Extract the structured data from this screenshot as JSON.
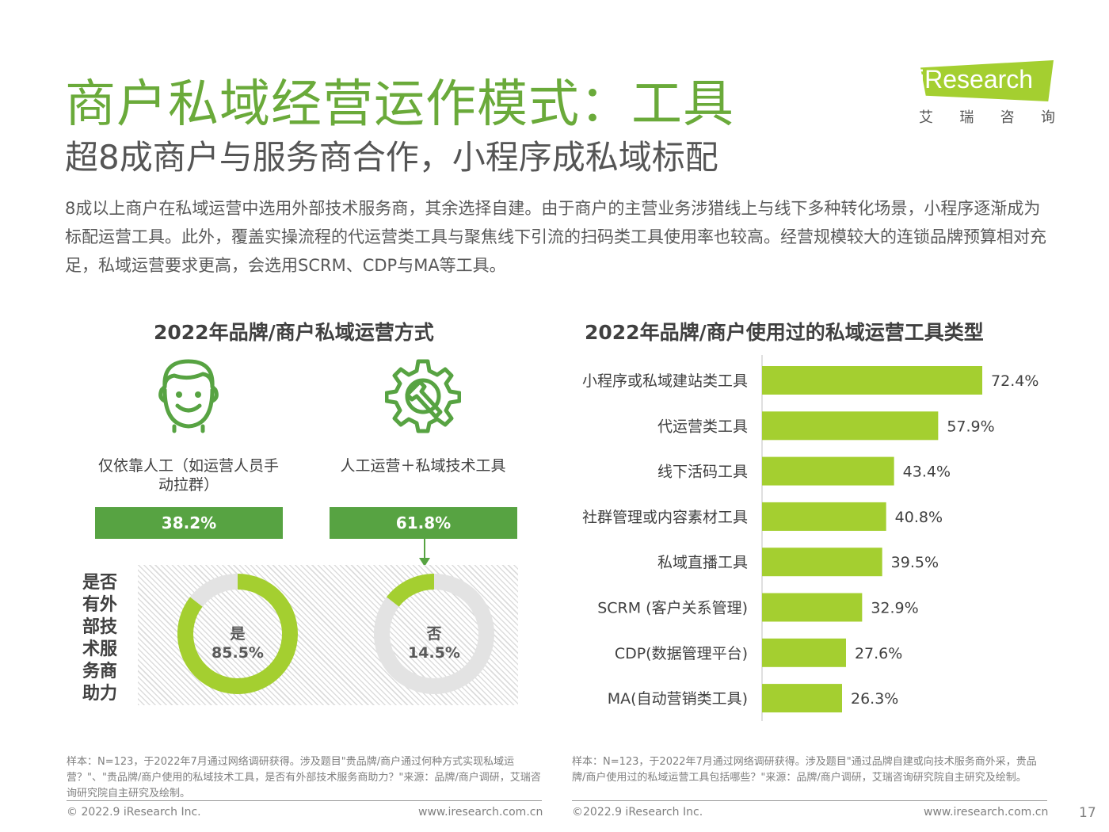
{
  "header": {
    "title": "商户私域经营运作模式：工具",
    "subtitle": "超8成商户与服务商合作，小程序成私域标配",
    "intro": "8成以上商户在私域运营中选用外部技术服务商，其余选择自建。由于商户的主营业务涉猎线上与线下多种转化场景，小程序逐渐成为标配运营工具。此外，覆盖实操流程的代运营类工具与聚焦线下引流的扫码类工具使用率也较高。经营规模较大的连锁品牌预算相对充足，私域运营要求更高，会选用SCRM、CDP与MA等工具。"
  },
  "logo": {
    "name": "iResearch",
    "chars": [
      "艾",
      "瑞",
      "咨",
      "询"
    ],
    "accent": "#a4cf30"
  },
  "left_panel": {
    "title": "2022年品牌/商户私域运营方式",
    "modes": [
      {
        "label": "仅依靠人工（如运营人员手动拉群）",
        "value": "38.2%",
        "icon": "person-face-icon"
      },
      {
        "label": "人工运营＋私域技术工具",
        "value": "61.8%",
        "icon": "gear-wrench-icon"
      }
    ],
    "question_label": "是否有外部技术服务商助力",
    "donut": {
      "yes_label": "是",
      "yes_value": "85.5%",
      "no_label": "否",
      "no_value": "14.5%"
    }
  },
  "chart_data": [
    {
      "type": "bar",
      "title": "2022年品牌/商户私域运营方式",
      "categories": [
        "仅依靠人工（如运营人员手动拉群）",
        "人工运营＋私域技术工具"
      ],
      "values": [
        38.2,
        61.8
      ],
      "sub_chart": {
        "type": "pie",
        "title": "是否有外部技术服务商助力",
        "categories": [
          "是",
          "否"
        ],
        "values": [
          85.5,
          14.5
        ]
      }
    },
    {
      "type": "bar",
      "orientation": "horizontal",
      "title": "2022年品牌/商户使用过的私域运营工具类型",
      "categories": [
        "小程序或私域建站类工具",
        "代运营类工具",
        "线下活码工具",
        "社群管理或内容素材工具",
        "私域直播工具",
        "SCRM (客户关系管理)",
        "CDP(数据管理平台)",
        "MA(自动营销类工具)"
      ],
      "values": [
        72.4,
        57.9,
        43.4,
        40.8,
        39.5,
        32.9,
        27.6,
        26.3
      ],
      "value_labels": [
        "72.4%",
        "57.9%",
        "43.4%",
        "40.8%",
        "39.5%",
        "32.9%",
        "27.6%",
        "26.3%"
      ],
      "xlim": [
        0,
        100
      ],
      "grid": false
    }
  ],
  "colors": {
    "title_green": "#6aaa3a",
    "bar_green": "#57a342",
    "lime": "#a4cf30",
    "donut_grey": "#e3e3e3"
  },
  "footnotes": {
    "left": "样本：N=123，于2022年7月通过网络调研获得。涉及题目\"贵品牌/商户通过何种方式实现私域运营？\"、\"贵品牌/商户使用的私域技术工具，是否有外部技术服务商助力？\"来源：品牌/商户调研，艾瑞咨询研究院自主研究及绘制。",
    "right": "样本：N=123，于2022年7月通过网络调研获得。涉及题目\"通过品牌自建或向技术服务商外采，贵品牌/商户使用过的私域运营工具包括哪些？\"来源：品牌/商户调研，艾瑞咨询研究院自主研究及绘制。"
  },
  "footer": {
    "left_copyright": "© 2022.9 iResearch Inc.",
    "left_url": "www.iresearch.com.cn",
    "right_copyright": "©2022.9 iResearch Inc.",
    "right_url": "www.iresearch.com.cn",
    "page": "17"
  }
}
